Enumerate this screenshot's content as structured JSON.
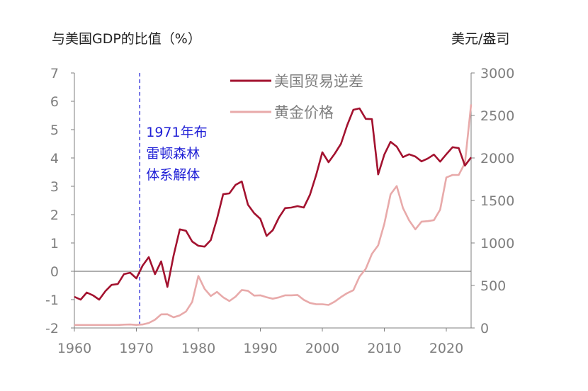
{
  "chart_data": {
    "type": "line",
    "y_left_title": "与美国GDP的比值（%）",
    "y_right_title": "美元/盎司",
    "x_ticks": [
      1960,
      1970,
      1980,
      1990,
      2000,
      2010,
      2020
    ],
    "x_range": [
      1960,
      2024
    ],
    "y_left_range": [
      -2,
      7
    ],
    "y_left_ticks": [
      -2,
      -1,
      0,
      1,
      2,
      3,
      4,
      5,
      6,
      7
    ],
    "y_right_range": [
      0,
      3000
    ],
    "y_right_ticks": [
      0,
      500,
      1000,
      1500,
      2000,
      2500,
      3000
    ],
    "annotation": {
      "lines": [
        "1971年布",
        "雷顿森林",
        "体系解体"
      ],
      "x": 1971
    },
    "legend_position": "top-center",
    "colors": {
      "trade_deficit": "#a3122f",
      "gold": "#e8aaaa",
      "annotation": "#1f1fd6",
      "axis": "#7f7f7f"
    },
    "series": [
      {
        "name": "美国贸易逆差",
        "axis": "left",
        "x": [
          1960,
          1961,
          1962,
          1963,
          1964,
          1965,
          1966,
          1967,
          1968,
          1969,
          1970,
          1971,
          1972,
          1973,
          1974,
          1975,
          1976,
          1977,
          1978,
          1979,
          1980,
          1981,
          1982,
          1983,
          1984,
          1985,
          1986,
          1987,
          1988,
          1989,
          1990,
          1991,
          1992,
          1993,
          1994,
          1995,
          1996,
          1997,
          1998,
          1999,
          2000,
          2001,
          2002,
          2003,
          2004,
          2005,
          2006,
          2007,
          2008,
          2009,
          2010,
          2011,
          2012,
          2013,
          2014,
          2015,
          2016,
          2017,
          2018,
          2019,
          2020,
          2021,
          2022,
          2023,
          2024
        ],
        "values": [
          -0.9,
          -1.0,
          -0.75,
          -0.85,
          -1.0,
          -0.7,
          -0.48,
          -0.45,
          -0.1,
          -0.05,
          -0.25,
          0.2,
          0.5,
          -0.1,
          0.35,
          -0.55,
          0.55,
          1.48,
          1.43,
          1.05,
          0.9,
          0.87,
          1.1,
          1.85,
          2.72,
          2.75,
          3.05,
          3.17,
          2.35,
          2.05,
          1.85,
          1.25,
          1.45,
          1.9,
          2.23,
          2.25,
          2.3,
          2.25,
          2.7,
          3.4,
          4.2,
          3.85,
          4.15,
          4.5,
          5.15,
          5.7,
          5.75,
          5.38,
          5.37,
          3.42,
          4.12,
          4.57,
          4.4,
          4.03,
          4.13,
          4.05,
          3.88,
          3.98,
          4.12,
          3.87,
          4.13,
          4.38,
          4.35,
          3.73,
          4.02
        ]
      },
      {
        "name": "黄金价格",
        "axis": "right",
        "x": [
          1960,
          1961,
          1962,
          1963,
          1964,
          1965,
          1966,
          1967,
          1968,
          1969,
          1970,
          1971,
          1972,
          1973,
          1974,
          1975,
          1976,
          1977,
          1978,
          1979,
          1980,
          1981,
          1982,
          1983,
          1984,
          1985,
          1986,
          1987,
          1988,
          1989,
          1990,
          1991,
          1992,
          1993,
          1994,
          1995,
          1996,
          1997,
          1998,
          1999,
          2000,
          2001,
          2002,
          2003,
          2004,
          2005,
          2006,
          2007,
          2008,
          2009,
          2010,
          2011,
          2012,
          2013,
          2014,
          2015,
          2016,
          2017,
          2018,
          2019,
          2020,
          2021,
          2022,
          2023,
          2024
        ],
        "values": [
          35,
          35,
          35,
          35,
          35,
          35,
          35,
          35,
          39,
          41,
          36,
          41,
          58,
          97,
          160,
          161,
          125,
          148,
          193,
          307,
          612,
          460,
          376,
          424,
          361,
          317,
          368,
          447,
          437,
          381,
          384,
          362,
          344,
          360,
          384,
          384,
          388,
          331,
          294,
          279,
          279,
          271,
          310,
          363,
          409,
          444,
          604,
          696,
          872,
          972,
          1225,
          1572,
          1669,
          1411,
          1266,
          1160,
          1251,
          1257,
          1268,
          1392,
          1770,
          1800,
          1800,
          1940,
          2630
        ]
      }
    ]
  }
}
